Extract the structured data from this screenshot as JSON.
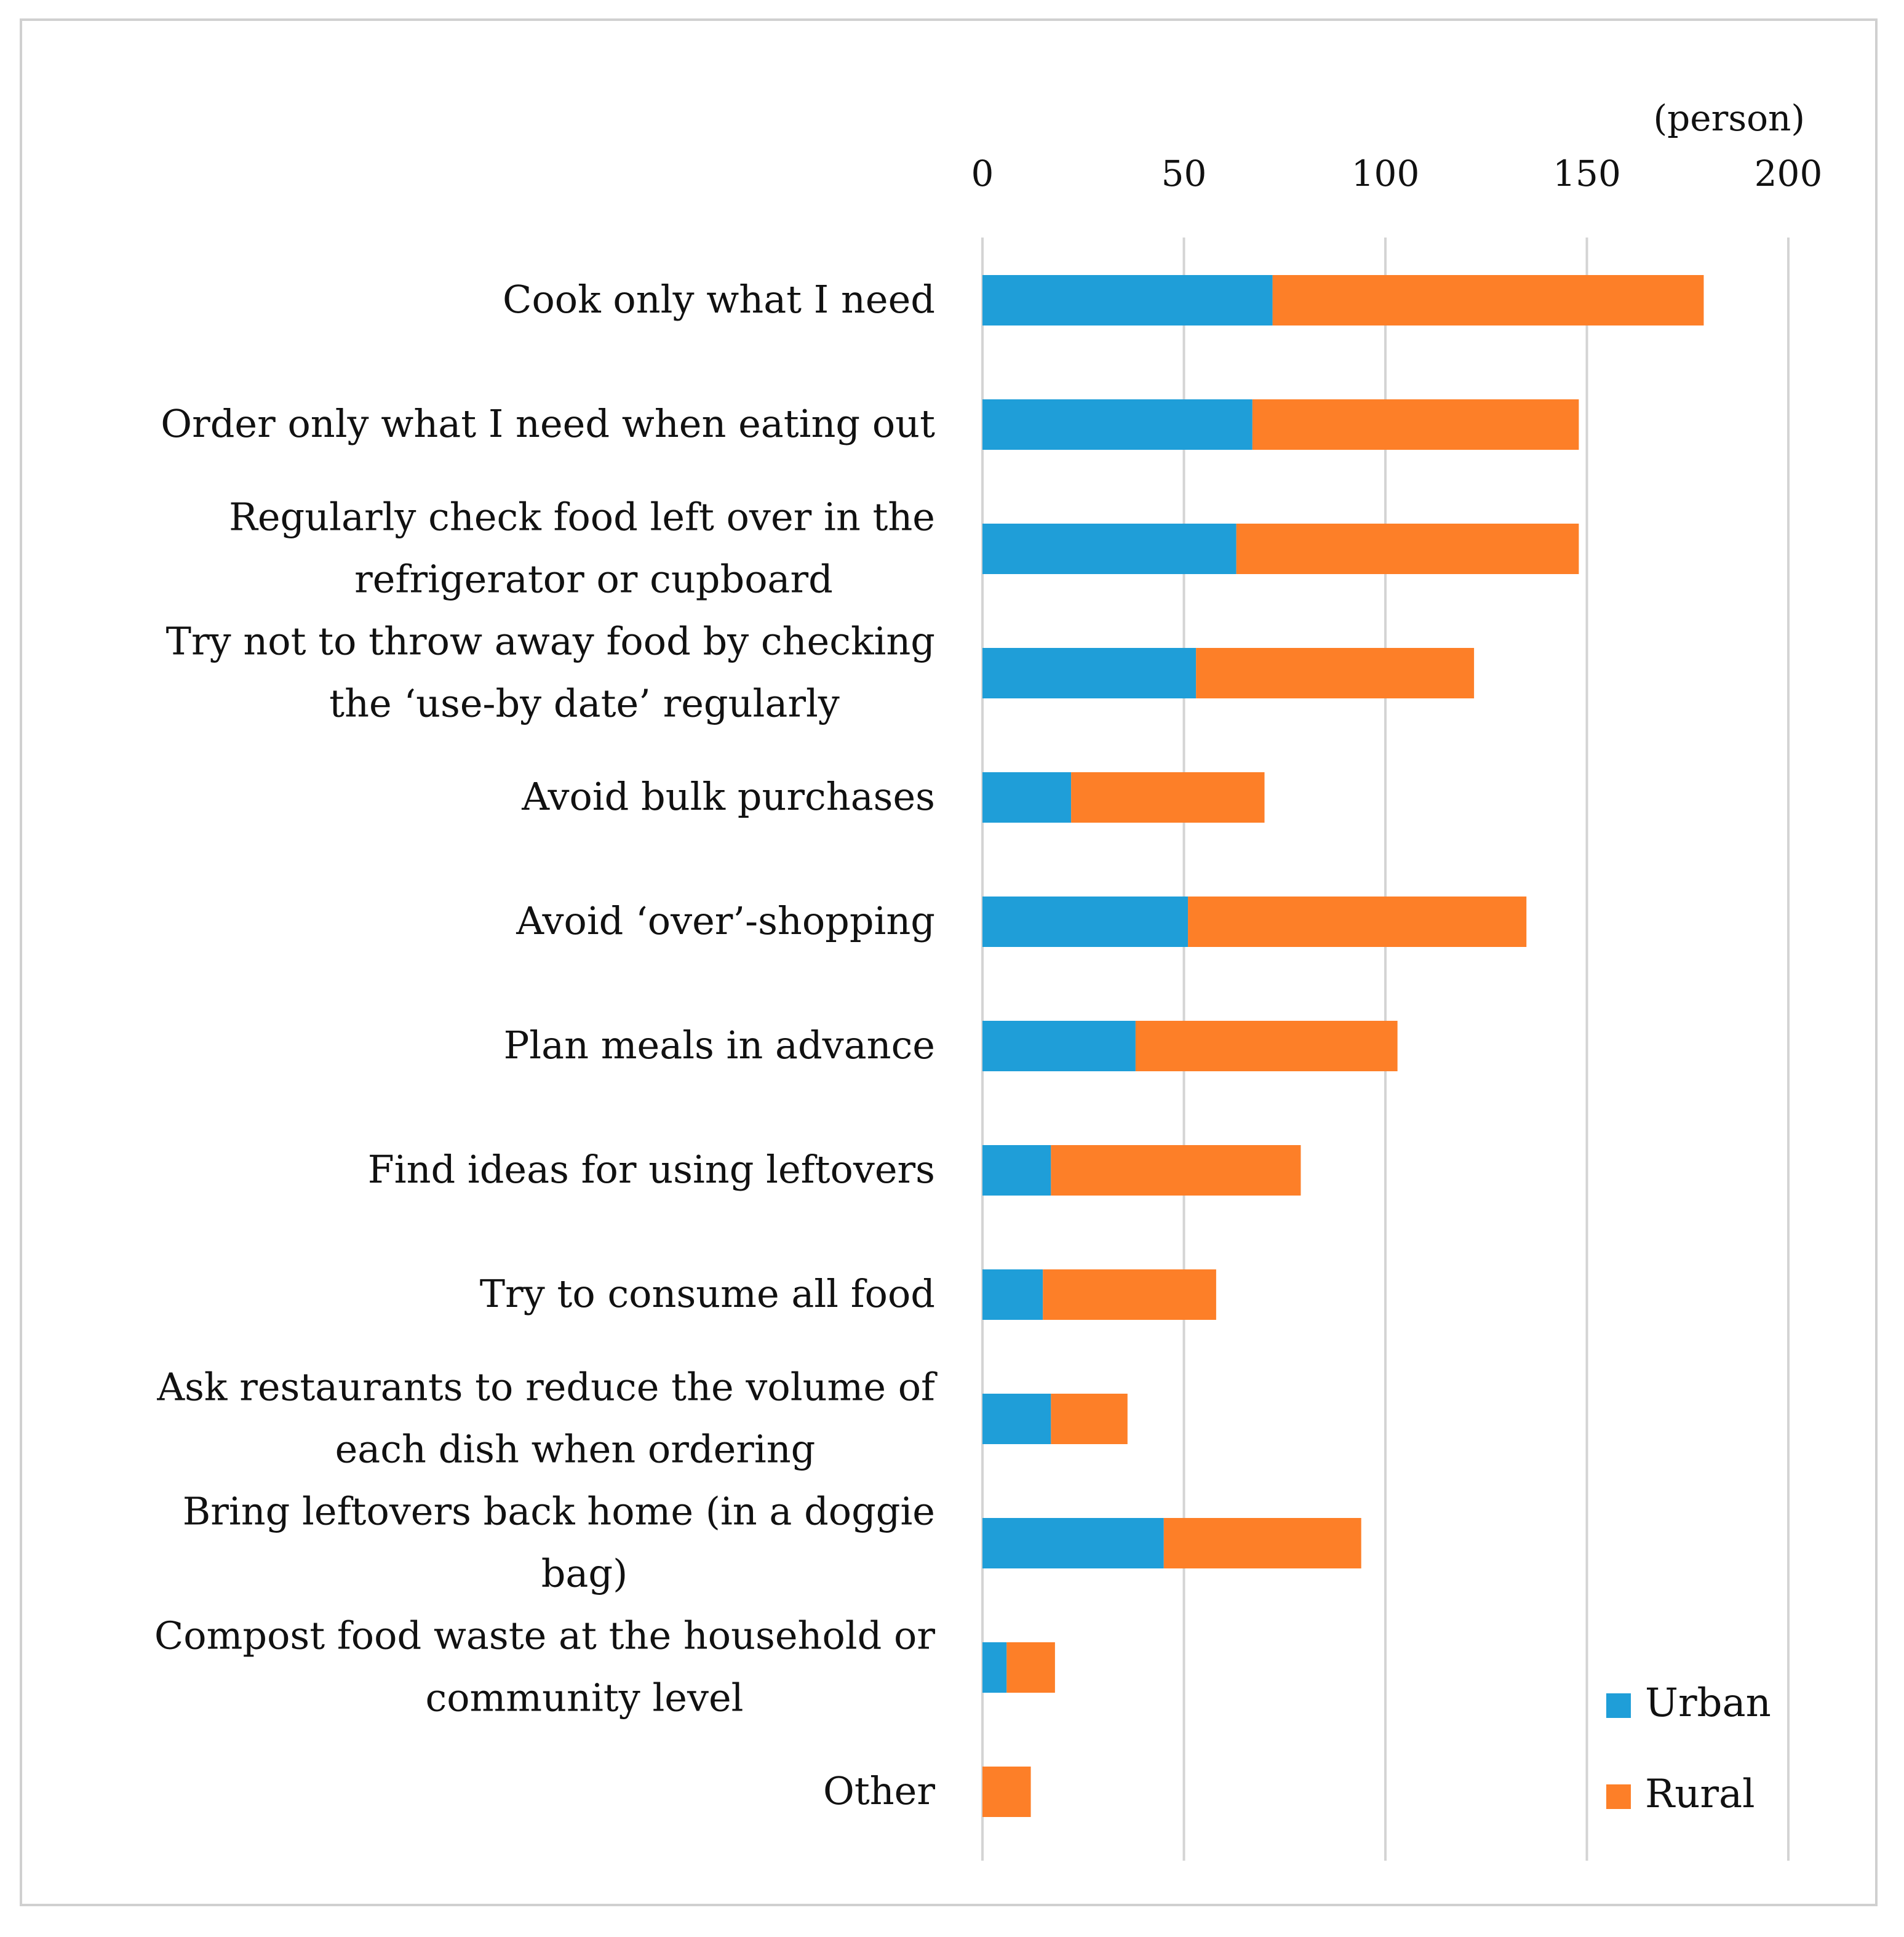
{
  "chart_data": {
    "type": "bar",
    "stacked": true,
    "orientation": "horizontal",
    "unit_label": "(person)",
    "xlim": [
      0,
      200
    ],
    "xticks": [
      0,
      50,
      100,
      150,
      200
    ],
    "grid": true,
    "legend_position": "bottom-right",
    "categories": [
      "Cook only what I need",
      "Order only what I need when eating out",
      "Regularly check food left over in the refrigerator or cupboard",
      "Try not to throw away food by checking the ‘use-by date’ regularly",
      "Avoid bulk purchases",
      "Avoid ‘over’-shopping",
      "Plan meals in advance",
      "Find ideas for using leftovers",
      "Try to consume all food",
      "Ask restaurants to reduce the volume of each dish when ordering",
      "Bring leftovers back home (in a doggie bag)",
      "Compost food waste at the household or community level",
      "Other"
    ],
    "category_lines": [
      [
        "Cook only what I need"
      ],
      [
        "Order only what I need when eating out"
      ],
      [
        "Regularly check food left over in the",
        "refrigerator or cupboard"
      ],
      [
        "Try not to throw away food by checking",
        "the ‘use-by date’ regularly"
      ],
      [
        "Avoid bulk purchases"
      ],
      [
        "Avoid ‘over’-shopping"
      ],
      [
        "Plan meals in advance"
      ],
      [
        "Find ideas for using leftovers"
      ],
      [
        "Try to consume all food"
      ],
      [
        "Ask restaurants to reduce the volume of",
        "each dish when ordering"
      ],
      [
        "Bring leftovers back home (in a doggie",
        "bag)"
      ],
      [
        "Compost food waste at the household or",
        "community level"
      ],
      [
        "Other"
      ]
    ],
    "series": [
      {
        "name": "Urban",
        "color": "#1f9ed8",
        "values": [
          72,
          67,
          63,
          53,
          22,
          51,
          38,
          17,
          15,
          17,
          45,
          6,
          0
        ]
      },
      {
        "name": "Rural",
        "color": "#fd7f28",
        "values": [
          107,
          81,
          85,
          69,
          48,
          84,
          65,
          62,
          43,
          19,
          49,
          12,
          12
        ]
      }
    ]
  }
}
